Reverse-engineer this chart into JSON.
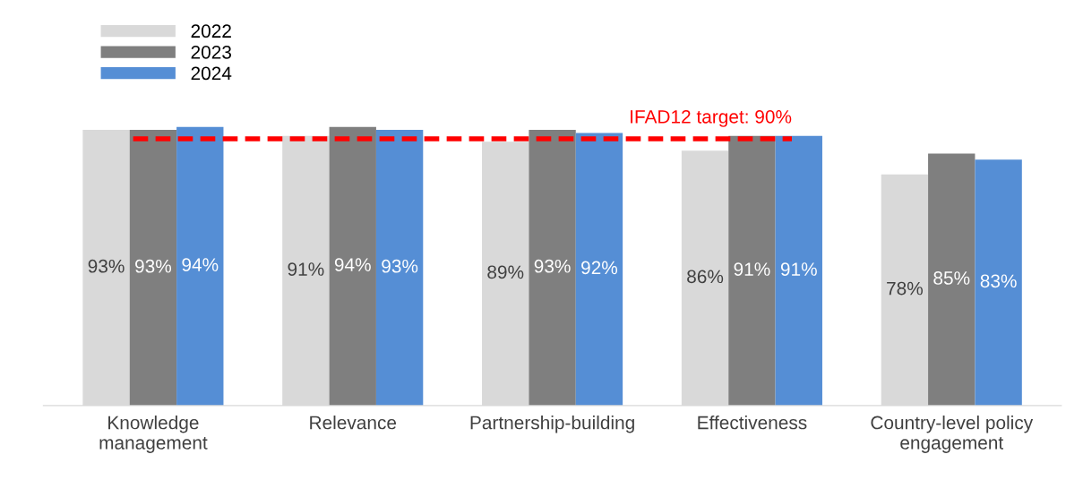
{
  "chart_data": {
    "type": "bar",
    "categories": [
      "Knowledge\nmanagement",
      "Relevance",
      "Partnership-building",
      "Effectiveness",
      "Country-level policy\nengagement"
    ],
    "series": [
      {
        "name": "2022",
        "color": "#d9d9d9",
        "values": [
          93,
          91,
          89,
          86,
          78
        ],
        "value_labels": [
          "93%",
          "91%",
          "89%",
          "86%",
          "78%"
        ]
      },
      {
        "name": "2023",
        "color": "#7f7f7f",
        "values": [
          93,
          94,
          93,
          91,
          85
        ],
        "value_labels": [
          "93%",
          "94%",
          "93%",
          "91%",
          "85%"
        ]
      },
      {
        "name": "2024",
        "color": "#558ed5",
        "values": [
          94,
          93,
          92,
          91,
          83
        ],
        "value_labels": [
          "94%",
          "93%",
          "92%",
          "91%",
          "83%"
        ]
      }
    ],
    "legend": "top left",
    "ref_lines": [
      {
        "axis": "y",
        "value": 90,
        "label": "IFAD12 target: 90%",
        "color": "#ff0000",
        "line_style": "dashed"
      }
    ]
  }
}
